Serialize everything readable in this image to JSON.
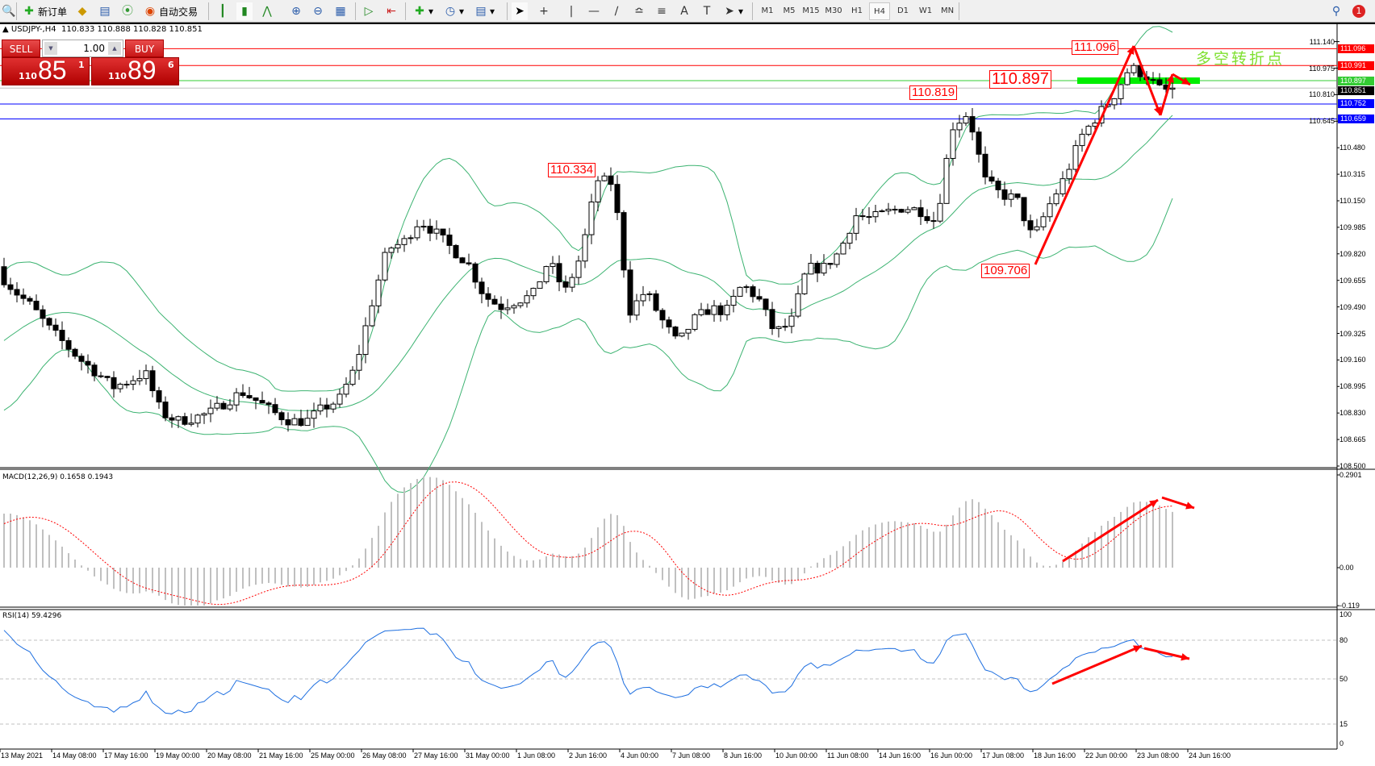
{
  "toolbar": {
    "new_order": "新订单",
    "auto_trading": "自动交易",
    "icons": [
      "zoom-magnifier-icon",
      "new-order-icon",
      "gold-icon",
      "market-watch-icon",
      "signals-icon",
      "auto-trading-icon",
      "bar-chart-icon",
      "candlestick-icon",
      "line-chart-icon",
      "zoom-in-icon",
      "zoom-out-icon",
      "tile-windows-icon",
      "auto-scroll-icon",
      "chart-shift-icon",
      "indicators-icon",
      "periods-icon",
      "templates-icon",
      "cursor-icon",
      "crosshair-icon",
      "vertical-line-icon",
      "horizontal-line-icon",
      "trend-line-icon",
      "fibonacci-icon",
      "text-icon",
      "text-label-icon",
      "arrows-icon"
    ],
    "timeframes": [
      "M1",
      "M5",
      "M15",
      "M30",
      "H1",
      "H4",
      "D1",
      "W1",
      "MN"
    ],
    "active_timeframe": "H4",
    "notification_count": "1"
  },
  "chart": {
    "symbol_line": "USDJPY-,H4  110.833 110.888 110.828 110.851",
    "trade_panel": {
      "sell_label": "SELL",
      "buy_label": "BUY",
      "lot": "1.00",
      "sell_prefix": "110",
      "sell_big": "85",
      "sell_pip": "1",
      "buy_prefix": "110",
      "buy_big": "89",
      "buy_pip": "6"
    },
    "annotations": {
      "high": "111.096",
      "pivot": "110.897",
      "level_819": "110.819",
      "low": "109.706",
      "level_334": "110.334",
      "note": "多空转折点"
    },
    "price_axis": [
      "111.140",
      "110.975",
      "110.810",
      "110.645",
      "110.480",
      "110.315",
      "110.150",
      "109.985",
      "109.820",
      "109.655",
      "109.490",
      "109.325",
      "109.160",
      "108.995",
      "108.830",
      "108.665",
      "108.500"
    ],
    "price_range": [
      108.5,
      111.14
    ],
    "horizontal_lines": [
      {
        "price": 111.096,
        "label": "111.096",
        "color": "#ff0000"
      },
      {
        "price": 110.991,
        "label": "110.991",
        "color": "#ff0000"
      },
      {
        "price": 110.897,
        "label": "110.897",
        "color": "#33cc33"
      },
      {
        "price": 110.851,
        "label": "110.851",
        "color": "#000000"
      },
      {
        "price": 110.752,
        "label": "110.752",
        "color": "#0000ff"
      },
      {
        "price": 110.659,
        "label": "110.659",
        "color": "#0000ff"
      }
    ],
    "price_path": [
      109.69,
      109.58,
      109.49,
      109.36,
      109.26,
      109.16,
      109.08,
      108.99,
      109.03,
      109.08,
      108.83,
      108.78,
      108.8,
      108.83,
      108.9,
      108.96,
      108.9,
      108.83,
      108.78,
      108.78,
      108.86,
      108.91,
      109.11,
      109.5,
      109.85,
      109.89,
      110.03,
      109.95,
      109.85,
      109.76,
      109.56,
      109.49,
      109.53,
      109.56,
      109.78,
      109.58,
      109.81,
      110.28,
      110.26,
      109.46,
      109.59,
      109.41,
      109.26,
      109.41,
      109.48,
      109.46,
      109.63,
      109.54,
      109.33,
      109.39,
      109.73,
      109.73,
      109.83,
      110.06,
      110.04,
      110.08,
      110.11,
      110.09,
      110.02,
      110.61,
      110.7,
      110.28,
      110.19,
      110.16,
      109.91,
      110.12,
      110.3,
      110.55,
      110.68,
      110.8,
      110.98,
      110.93,
      110.83,
      110.851
    ],
    "bollinger_color": "#3cb371",
    "dates": [
      "13 May 2021",
      "14 May 08:00",
      "17 May 16:00",
      "19 May 00:00",
      "20 May 08:00",
      "21 May 16:00",
      "25 May 00:00",
      "26 May 08:00",
      "27 May 16:00",
      "31 May 00:00",
      "1 Jun 08:00",
      "2 Jun 16:00",
      "4 Jun 00:00",
      "7 Jun 08:00",
      "8 Jun 16:00",
      "10 Jun 00:00",
      "11 Jun 08:00",
      "14 Jun 16:00",
      "16 Jun 00:00",
      "17 Jun 08:00",
      "18 Jun 16:00",
      "22 Jun 00:00",
      "23 Jun 08:00",
      "24 Jun 16:00"
    ]
  },
  "macd": {
    "label": "MACD(12,26,9) 0.1658 0.1943",
    "axis": [
      "0.2901",
      "0.00",
      "-0.119"
    ],
    "range": [
      -0.119,
      0.2901
    ]
  },
  "rsi": {
    "label": "RSI(14) 59.4296",
    "axis": [
      "100",
      "80",
      "50",
      "15",
      "0"
    ],
    "color": "#1e6fe0"
  }
}
